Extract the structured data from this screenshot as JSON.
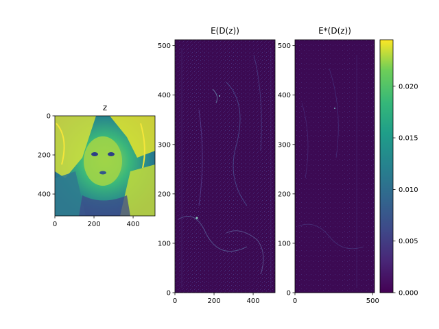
{
  "chart_data": [
    {
      "type": "heatmap",
      "title": "z",
      "xlim": [
        0,
        512
      ],
      "ylim": [
        512,
        0
      ],
      "x_ticks": [
        0,
        200,
        400
      ],
      "y_ticks": [
        0,
        200,
        400
      ],
      "colormap": "viridis",
      "content": "grayscale portrait image rendered in viridis"
    },
    {
      "type": "heatmap",
      "title": "E(D(z))",
      "xlim": [
        0,
        512
      ],
      "ylim": [
        0,
        512
      ],
      "x_ticks": [
        0,
        200,
        400
      ],
      "y_ticks": [
        0,
        100,
        200,
        300,
        400,
        500
      ],
      "colormap": "viridis",
      "content": "error map, mostly near 0 with faint bright edges"
    },
    {
      "type": "heatmap",
      "title": "E*(D(z))",
      "xlim": [
        0,
        512
      ],
      "ylim": [
        0,
        512
      ],
      "x_ticks": [
        0,
        500
      ],
      "y_ticks": [
        0,
        100,
        200,
        300,
        400,
        500
      ],
      "colormap": "viridis",
      "content": "error map, mostly near 0 with faint edges"
    }
  ],
  "colorbar": {
    "range": [
      0,
      0.0245
    ],
    "ticks": [
      "0.000",
      "0.005",
      "0.010",
      "0.015",
      "0.020"
    ],
    "tick_values": [
      0,
      0.005,
      0.01,
      0.015,
      0.02
    ],
    "colormap": "viridis"
  },
  "colors": {
    "viridis_low": "#440154",
    "viridis_mid": "#21918c",
    "viridis_high": "#fde725",
    "dark_bg": "#3b0a52"
  }
}
